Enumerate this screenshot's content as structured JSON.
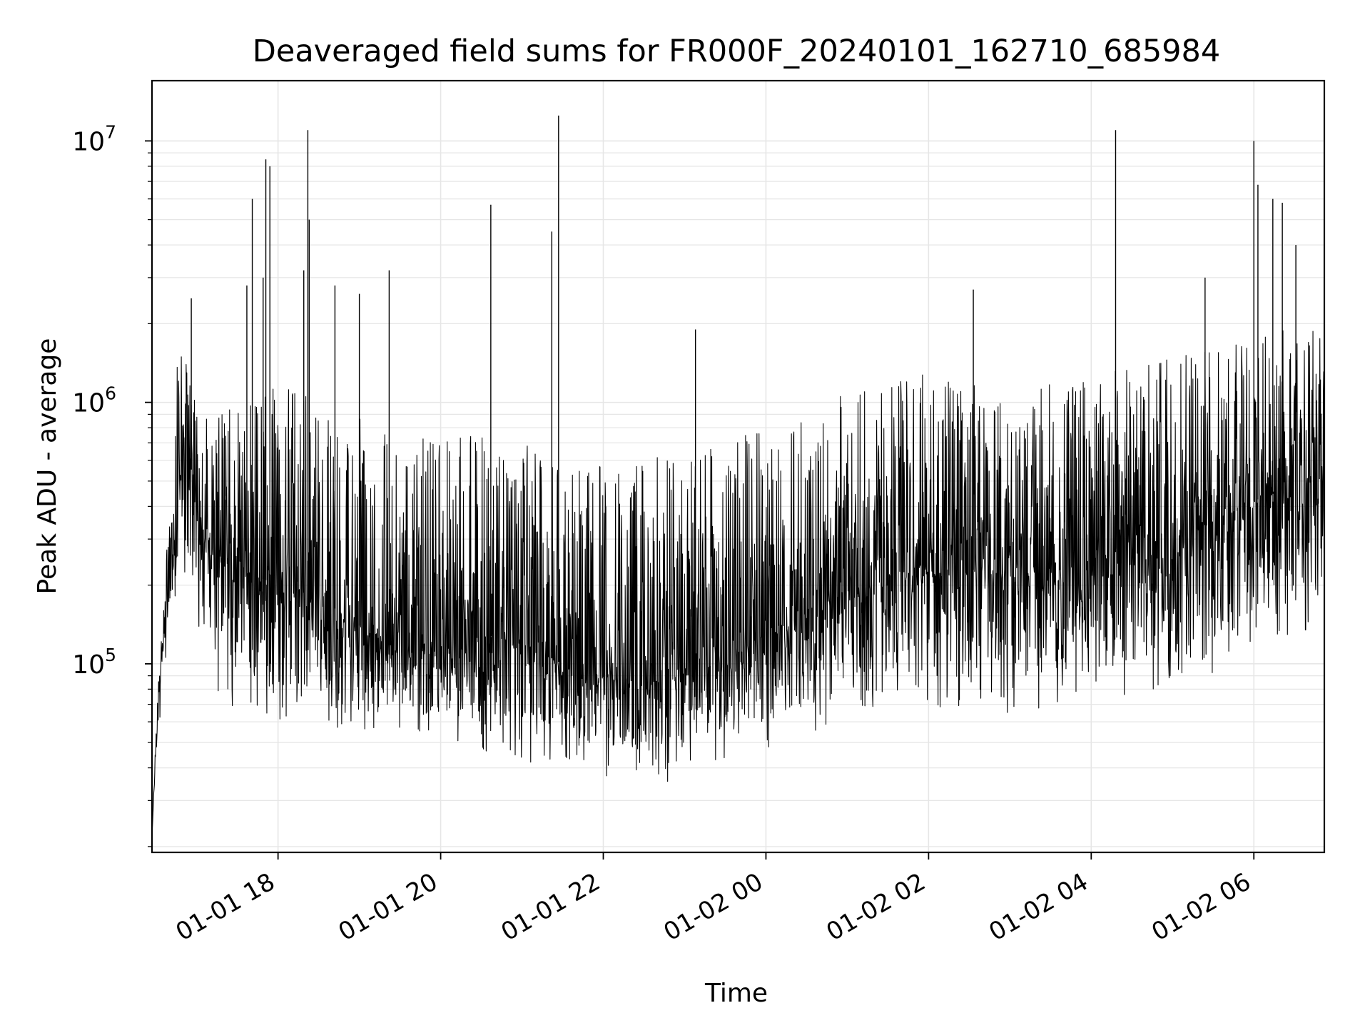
{
  "chart_data": {
    "type": "line",
    "title": "Deaveraged field sums for FR000F_20240101_162710_685984",
    "xlabel": "Time",
    "ylabel": "Peak ADU - average",
    "y_scale": "log",
    "ylim": [
      19000,
      17000000
    ],
    "xlim": [
      "2024-01-01 16:27",
      "2024-01-02 06:52"
    ],
    "grid": true,
    "line_color": "#000000",
    "grid_color": "#e6e6e6",
    "xticks": [
      {
        "value": "2024-01-01 18:00",
        "label": "01-01 18"
      },
      {
        "value": "2024-01-01 20:00",
        "label": "01-01 20"
      },
      {
        "value": "2024-01-01 22:00",
        "label": "01-01 22"
      },
      {
        "value": "2024-01-02 00:00",
        "label": "01-02 00"
      },
      {
        "value": "2024-01-02 02:00",
        "label": "01-02 02"
      },
      {
        "value": "2024-01-02 04:00",
        "label": "01-02 04"
      },
      {
        "value": "2024-01-02 06:00",
        "label": "01-02 06"
      }
    ],
    "yticks": [
      {
        "value": 100000,
        "base": "10",
        "exp": "5"
      },
      {
        "value": 1000000,
        "base": "10",
        "exp": "6"
      },
      {
        "value": 10000000,
        "base": "10",
        "exp": "7"
      }
    ],
    "series": [
      {
        "x": [
          "2024-01-01 16:27",
          "2024-01-01 16:30",
          "2024-01-01 16:35",
          "2024-01-01 16:40",
          "2024-01-01 16:45",
          "2024-01-01 16:50",
          "2024-01-01 16:55",
          "2024-01-01 17:00",
          "2024-01-01 17:10",
          "2024-01-01 17:20",
          "2024-01-01 17:40",
          "2024-01-01 18:00",
          "2024-01-01 18:30",
          "2024-01-01 19:00",
          "2024-01-01 19:30",
          "2024-01-01 20:00",
          "2024-01-01 20:30",
          "2024-01-01 21:00",
          "2024-01-01 21:30",
          "2024-01-01 22:00",
          "2024-01-01 22:30",
          "2024-01-01 23:00",
          "2024-01-01 23:30",
          "2024-01-02 00:00",
          "2024-01-02 00:30",
          "2024-01-02 01:00",
          "2024-01-02 01:30",
          "2024-01-02 02:00",
          "2024-01-02 02:30",
          "2024-01-02 03:00",
          "2024-01-02 03:30",
          "2024-01-02 04:00",
          "2024-01-02 04:30",
          "2024-01-02 05:00",
          "2024-01-02 05:30",
          "2024-01-02 06:00",
          "2024-01-02 06:30",
          "2024-01-02 06:52"
        ],
        "y": [
          22000,
          50000,
          130000,
          200000,
          350000,
          700000,
          600000,
          400000,
          250000,
          200000,
          220000,
          200000,
          180000,
          140000,
          120000,
          110000,
          130000,
          120000,
          100000,
          90000,
          85000,
          90000,
          110000,
          130000,
          160000,
          190000,
          220000,
          240000,
          230000,
          220000,
          230000,
          250000,
          280000,
          300000,
          350000,
          420000,
          480000,
          500000
        ],
        "y_low": [
          22000,
          45000,
          110000,
          170000,
          230000,
          300000,
          250000,
          130000,
          95000,
          90000,
          85000,
          80000,
          75000,
          70000,
          68000,
          65000,
          60000,
          55000,
          50000,
          48000,
          46000,
          47000,
          55000,
          60000,
          70000,
          80000,
          85000,
          90000,
          88000,
          85000,
          90000,
          95000,
          100000,
          110000,
          120000,
          150000,
          170000,
          180000
        ],
        "y_high": [
          22000,
          60000,
          160000,
          400000,
          1400000,
          1700000,
          1200000,
          1000000,
          900000,
          900000,
          1100000,
          1200000,
          1000000,
          900000,
          800000,
          700000,
          800000,
          700000,
          650000,
          600000,
          600000,
          650000,
          700000,
          800000,
          900000,
          1100000,
          1300000,
          1300000,
          1200000,
          1100000,
          1200000,
          1300000,
          1400000,
          1500000,
          1600000,
          1800000,
          2000000,
          2000000
        ]
      }
    ],
    "spikes": [
      {
        "x": "2024-01-01 16:56",
        "y": 2500000
      },
      {
        "x": "2024-01-01 17:37",
        "y": 2800000
      },
      {
        "x": "2024-01-01 17:41",
        "y": 6000000
      },
      {
        "x": "2024-01-01 17:49",
        "y": 3000000
      },
      {
        "x": "2024-01-01 17:51",
        "y": 8500000
      },
      {
        "x": "2024-01-01 17:54",
        "y": 8000000
      },
      {
        "x": "2024-01-01 18:19",
        "y": 3200000
      },
      {
        "x": "2024-01-01 18:22",
        "y": 11000000
      },
      {
        "x": "2024-01-01 18:23",
        "y": 5000000
      },
      {
        "x": "2024-01-01 18:42",
        "y": 2800000
      },
      {
        "x": "2024-01-01 19:00",
        "y": 2600000
      },
      {
        "x": "2024-01-01 19:22",
        "y": 3200000
      },
      {
        "x": "2024-01-01 20:37",
        "y": 5700000
      },
      {
        "x": "2024-01-01 21:22",
        "y": 4500000
      },
      {
        "x": "2024-01-01 21:27",
        "y": 12500000
      },
      {
        "x": "2024-01-01 23:08",
        "y": 1900000
      },
      {
        "x": "2024-01-02 02:33",
        "y": 2700000
      },
      {
        "x": "2024-01-02 04:18",
        "y": 11000000
      },
      {
        "x": "2024-01-02 05:24",
        "y": 3000000
      },
      {
        "x": "2024-01-02 06:00",
        "y": 10000000
      },
      {
        "x": "2024-01-02 06:03",
        "y": 6800000
      },
      {
        "x": "2024-01-02 06:14",
        "y": 6000000
      },
      {
        "x": "2024-01-02 06:21",
        "y": 5800000
      },
      {
        "x": "2024-01-02 06:31",
        "y": 4000000
      }
    ]
  }
}
